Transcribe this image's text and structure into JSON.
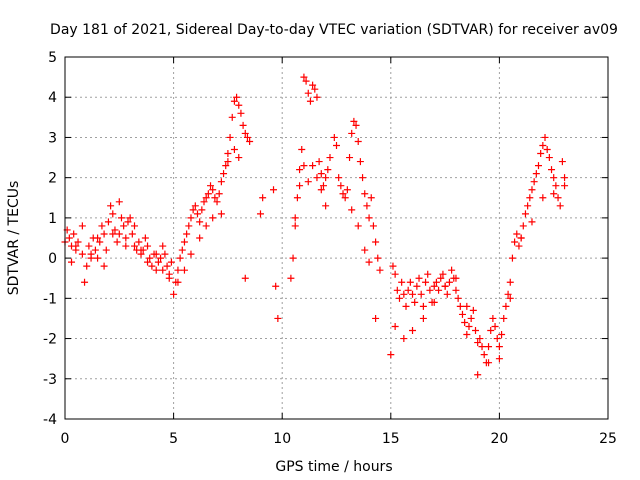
{
  "chart_data": {
    "type": "scatter",
    "title": "Day 181 of 2021, Sidereal Day-to-day VTEC variation (SDTVAR) for receiver av09",
    "xlabel": "GPS time / hours",
    "ylabel": "SDTVAR / TECUs",
    "xlim": [
      0,
      25
    ],
    "ylim": [
      -4,
      5
    ],
    "xticks": [
      "0",
      "5",
      "10",
      "15",
      "20",
      "25"
    ],
    "yticks": [
      "-4",
      "-3",
      "-2",
      "-1",
      "0",
      "1",
      "2",
      "3",
      "4",
      "5"
    ],
    "grid": true,
    "marker": "+",
    "color": "#ff0000",
    "series": [
      {
        "name": "SDTVAR",
        "x": [
          0.0,
          0.1,
          0.2,
          0.3,
          0.4,
          0.5,
          0.6,
          0.8,
          0.9,
          1.0,
          1.1,
          1.2,
          1.3,
          1.4,
          1.5,
          1.6,
          1.7,
          1.8,
          1.9,
          2.0,
          2.1,
          2.2,
          2.3,
          2.4,
          2.5,
          2.6,
          2.7,
          2.8,
          2.9,
          3.0,
          3.1,
          3.2,
          3.3,
          3.4,
          3.5,
          3.6,
          3.7,
          3.8,
          3.9,
          4.0,
          4.1,
          4.2,
          4.3,
          4.4,
          4.5,
          4.6,
          4.7,
          4.8,
          4.9,
          5.0,
          5.1,
          5.2,
          5.3,
          5.4,
          5.5,
          5.6,
          5.7,
          5.8,
          5.9,
          6.0,
          6.1,
          6.2,
          6.3,
          6.4,
          6.5,
          6.6,
          6.7,
          6.8,
          6.9,
          7.0,
          7.1,
          7.2,
          7.3,
          7.4,
          7.5,
          7.6,
          7.7,
          7.8,
          7.9,
          8.0,
          8.1,
          8.2,
          8.3,
          8.4,
          8.5,
          9.0,
          9.1,
          9.6,
          9.7,
          9.8,
          10.4,
          10.5,
          10.6,
          10.7,
          10.8,
          10.9,
          11.0,
          11.1,
          11.2,
          11.3,
          11.4,
          11.5,
          11.6,
          11.7,
          11.8,
          11.9,
          12.0,
          12.1,
          12.2,
          12.4,
          12.5,
          12.6,
          12.7,
          12.8,
          12.9,
          13.0,
          13.1,
          13.2,
          13.3,
          13.4,
          13.5,
          13.6,
          13.7,
          13.8,
          13.9,
          14.0,
          14.1,
          14.2,
          14.3,
          14.4,
          14.5,
          15.0,
          15.1,
          15.2,
          15.3,
          15.4,
          15.5,
          15.6,
          15.7,
          15.8,
          15.9,
          16.0,
          16.1,
          16.2,
          16.3,
          16.4,
          16.5,
          16.6,
          16.7,
          16.8,
          16.9,
          17.0,
          17.1,
          17.2,
          17.3,
          17.4,
          17.5,
          17.6,
          17.7,
          17.8,
          17.9,
          18.0,
          18.1,
          18.2,
          18.3,
          18.4,
          18.5,
          18.6,
          18.7,
          18.8,
          18.9,
          19.0,
          19.1,
          19.2,
          19.3,
          19.4,
          19.5,
          19.6,
          19.7,
          19.8,
          19.9,
          20.0,
          20.1,
          20.2,
          20.3,
          20.4,
          20.5,
          20.6,
          20.7,
          20.8,
          20.9,
          21.0,
          21.1,
          21.2,
          21.3,
          21.4,
          21.5,
          21.6,
          21.7,
          21.8,
          21.9,
          22.0,
          22.1,
          22.2,
          22.3,
          22.4,
          22.5,
          22.6,
          22.7,
          22.8,
          22.9,
          23.0,
          0.3,
          0.5,
          0.8,
          1.2,
          1.5,
          1.8,
          2.2,
          2.5,
          2.8,
          3.2,
          3.5,
          3.8,
          4.2,
          4.5,
          4.8,
          5.2,
          5.5,
          5.8,
          6.2,
          6.5,
          6.8,
          7.2,
          7.5,
          7.8,
          8.0,
          8.3,
          10.6,
          10.8,
          11.0,
          11.2,
          11.4,
          11.6,
          11.8,
          12.0,
          13.2,
          13.5,
          13.8,
          14.0,
          14.3,
          15.2,
          15.6,
          16.0,
          16.5,
          17.0,
          17.5,
          18.0,
          18.5,
          19.0,
          19.5,
          20.0,
          20.5,
          21.0,
          21.5,
          22.0,
          22.5,
          23.0
        ],
        "y": [
          0.4,
          0.7,
          0.5,
          0.3,
          0.6,
          0.2,
          0.4,
          0.1,
          -0.6,
          -0.2,
          0.3,
          0.1,
          0.5,
          0.2,
          0.0,
          0.4,
          0.8,
          0.6,
          0.2,
          0.9,
          1.3,
          1.1,
          0.7,
          0.4,
          0.6,
          1.0,
          0.8,
          0.5,
          0.9,
          1.0,
          0.6,
          0.3,
          0.2,
          0.4,
          0.1,
          0.2,
          0.5,
          0.3,
          0.0,
          -0.2,
          0.1,
          -0.3,
          -0.1,
          0.0,
          0.3,
          0.1,
          -0.2,
          -0.4,
          -0.1,
          -0.9,
          -0.6,
          -0.3,
          0.0,
          0.2,
          0.4,
          0.6,
          0.8,
          1.0,
          1.2,
          1.3,
          1.1,
          0.9,
          1.2,
          1.4,
          1.5,
          1.6,
          1.8,
          1.7,
          1.5,
          1.4,
          1.6,
          1.9,
          2.1,
          2.3,
          2.6,
          3.0,
          3.5,
          3.9,
          4.0,
          3.8,
          3.6,
          3.3,
          3.1,
          3.0,
          2.9,
          1.1,
          1.5,
          1.7,
          -0.7,
          -1.5,
          -0.5,
          0.0,
          0.8,
          1.5,
          2.2,
          2.7,
          4.5,
          4.4,
          4.1,
          3.9,
          4.3,
          4.2,
          4.0,
          2.4,
          2.1,
          1.8,
          2.0,
          2.2,
          2.5,
          3.0,
          2.8,
          2.0,
          1.8,
          1.6,
          1.5,
          1.7,
          2.5,
          3.1,
          3.4,
          3.3,
          2.9,
          2.4,
          2.0,
          1.6,
          1.3,
          1.0,
          1.5,
          0.8,
          0.4,
          0.0,
          -0.3,
          -2.4,
          -0.2,
          -0.4,
          -0.8,
          -1.0,
          -0.6,
          -0.9,
          -1.2,
          -0.8,
          -0.6,
          -0.9,
          -1.1,
          -0.7,
          -0.5,
          -0.9,
          -1.2,
          -0.6,
          -0.4,
          -0.8,
          -1.1,
          -0.7,
          -0.6,
          -0.8,
          -0.5,
          -0.4,
          -0.7,
          -0.9,
          -0.6,
          -0.3,
          -0.5,
          -0.8,
          -1.0,
          -1.2,
          -1.4,
          -1.6,
          -1.9,
          -1.7,
          -1.5,
          -1.3,
          -1.8,
          -2.9,
          -2.0,
          -2.2,
          -2.4,
          -2.6,
          -2.2,
          -1.8,
          -1.5,
          -1.7,
          -2.0,
          -2.2,
          -1.9,
          -1.5,
          -1.2,
          -0.9,
          -0.6,
          0.0,
          0.4,
          0.6,
          0.3,
          0.5,
          0.8,
          1.1,
          1.3,
          1.5,
          1.7,
          1.9,
          2.1,
          2.3,
          2.6,
          2.8,
          3.0,
          2.7,
          2.5,
          2.2,
          2.0,
          1.8,
          1.5,
          1.3,
          2.4,
          2.0,
          -0.1,
          0.3,
          0.8,
          0.0,
          0.5,
          -0.2,
          0.6,
          1.4,
          0.3,
          0.8,
          0.2,
          -0.1,
          0.1,
          -0.3,
          -0.5,
          -0.6,
          -0.3,
          0.1,
          0.5,
          0.8,
          1.0,
          1.1,
          2.4,
          2.7,
          2.5,
          -0.5,
          1.0,
          1.8,
          2.3,
          1.9,
          2.3,
          2.0,
          1.7,
          1.3,
          1.2,
          0.8,
          0.2,
          -0.1,
          -1.5,
          -1.7,
          -2.0,
          -1.8,
          -1.5,
          -1.1,
          -0.7,
          -0.5,
          -1.2,
          -2.1,
          -2.6,
          -2.5,
          -1.0,
          0.5,
          0.9,
          1.5,
          1.6,
          1.8
        ]
      }
    ]
  }
}
